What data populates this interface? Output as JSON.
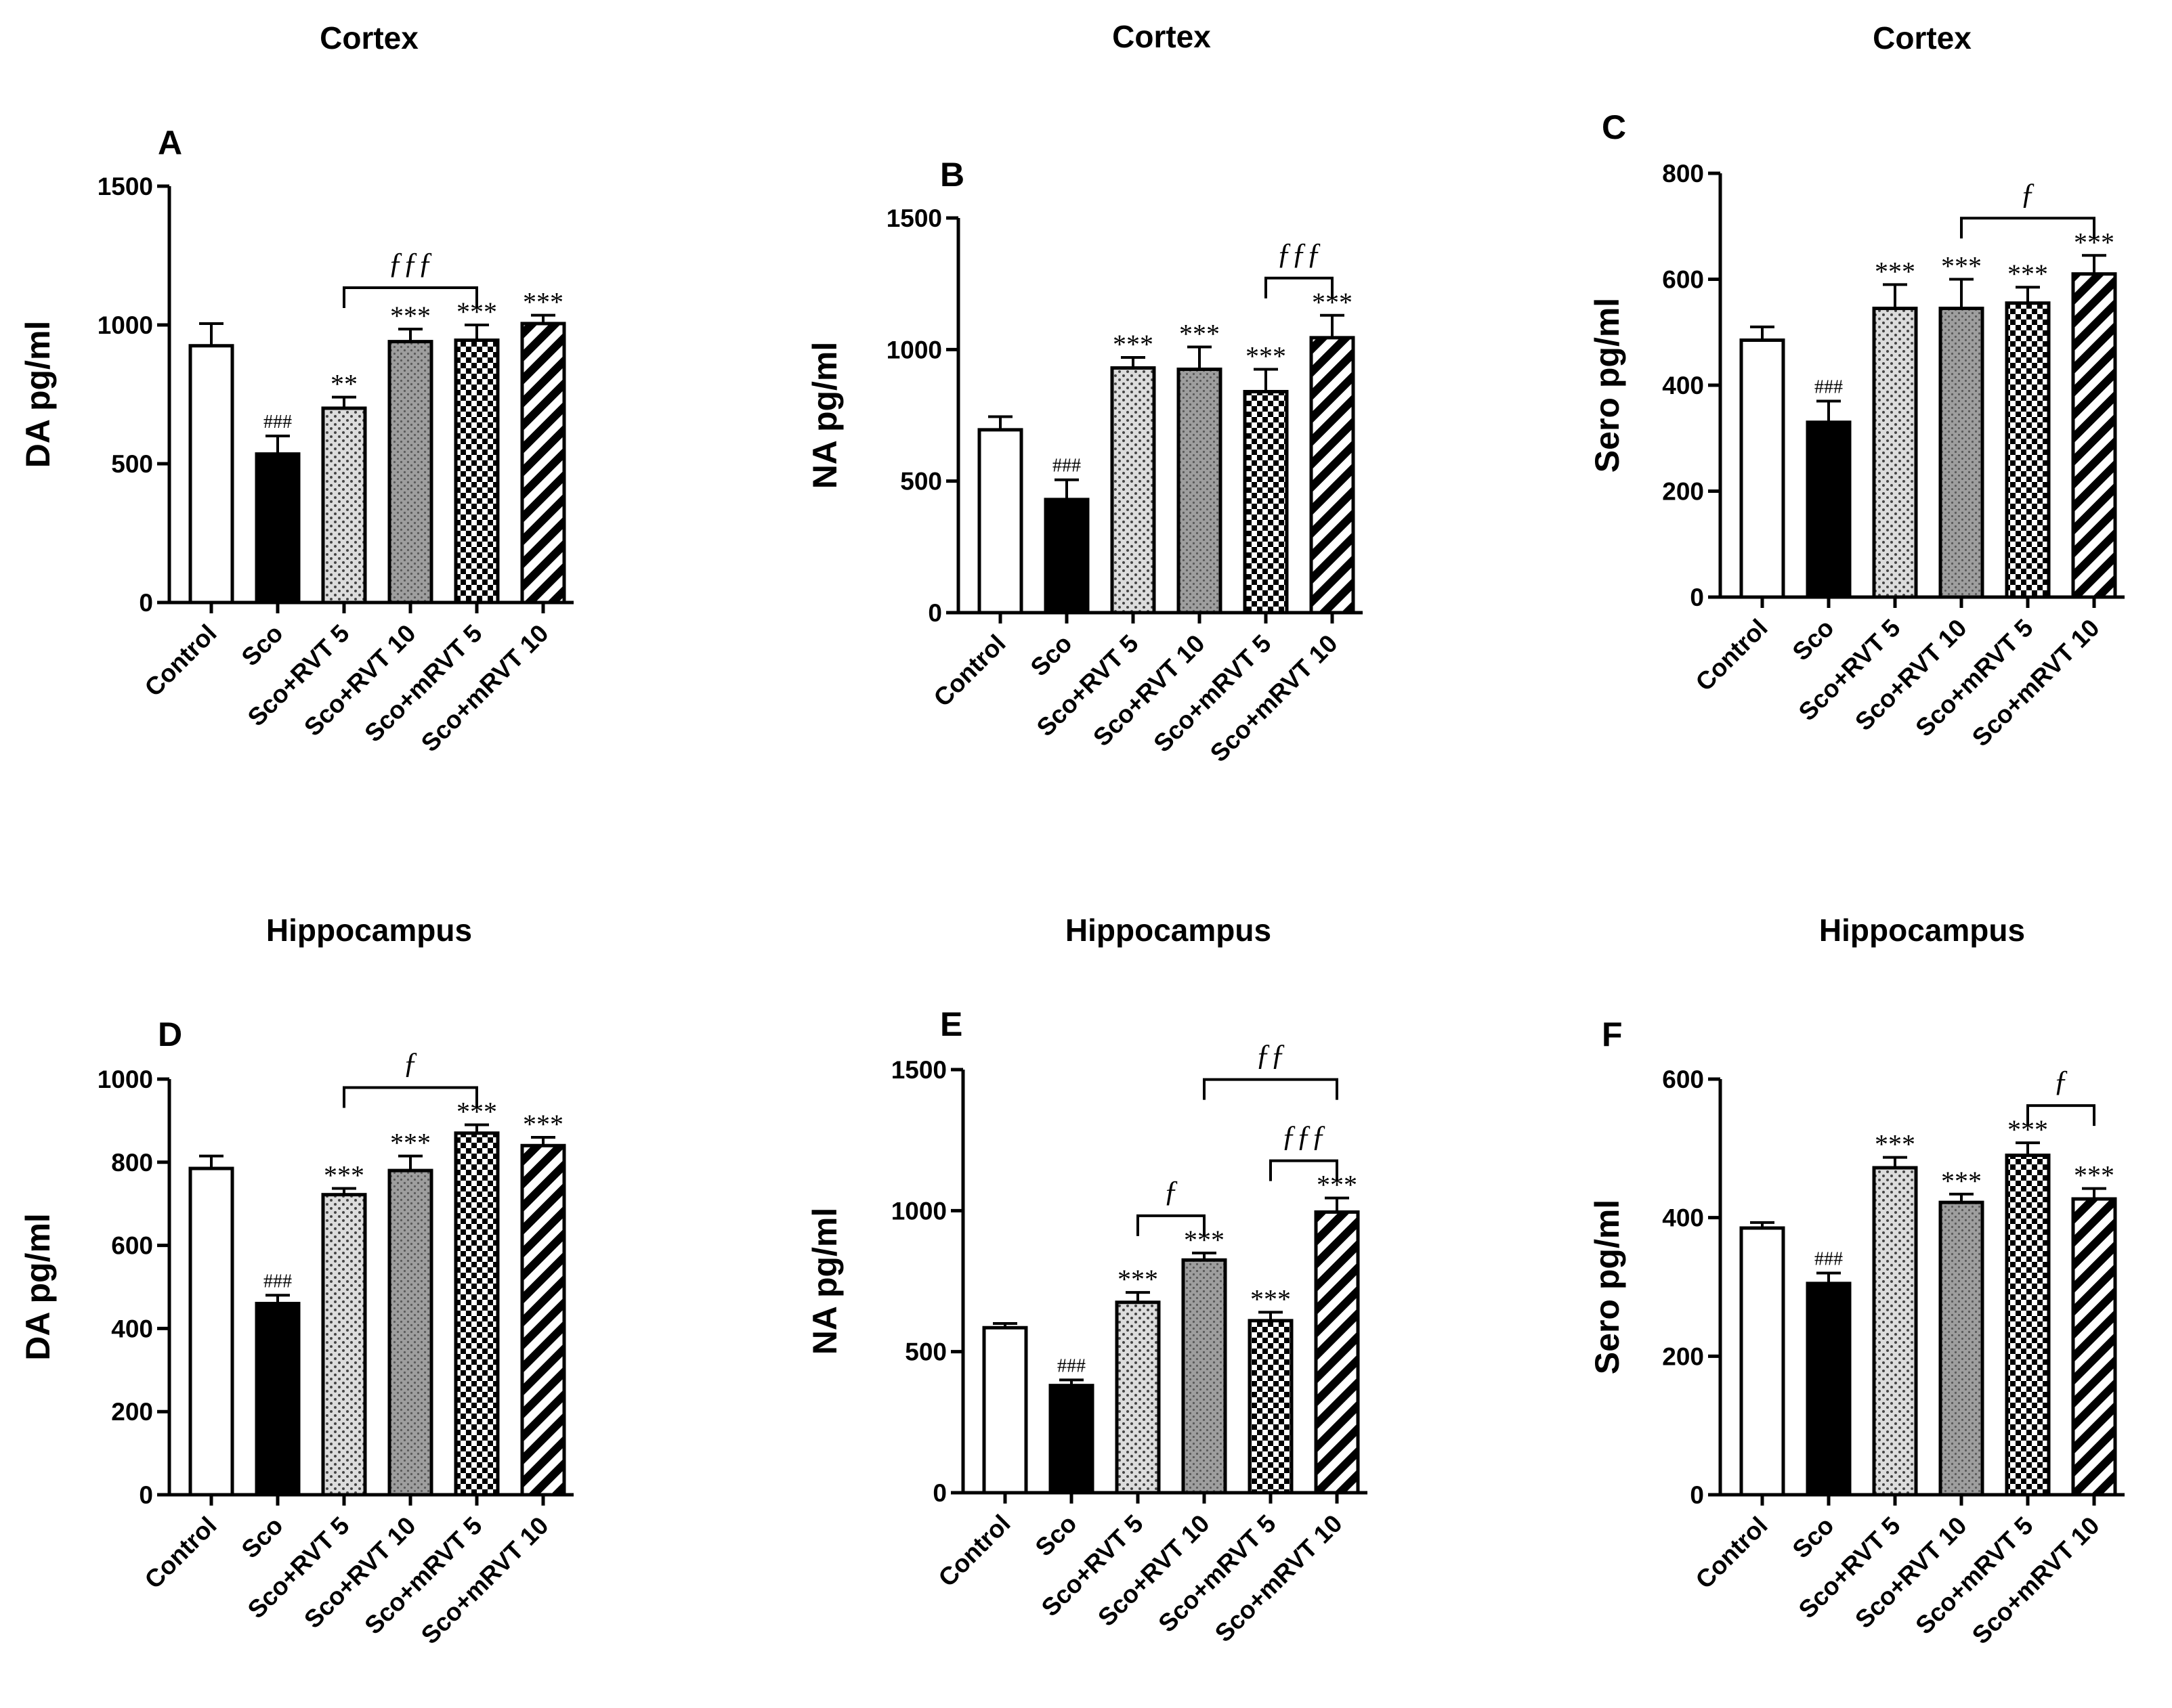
{
  "chart_data": [
    {
      "id": "A",
      "type": "bar",
      "title": "Cortex",
      "panel_label": "A",
      "ylabel": "DA pg/ml",
      "ylim": [
        0,
        1500
      ],
      "yticks": [
        0,
        500,
        1000,
        1500
      ],
      "categories": [
        "Control",
        "Sco",
        "Sco+RVT 5",
        "Sco+RVT 10",
        "Sco+mRVT 5",
        "Sco+mRVT 10"
      ],
      "values": [
        925,
        535,
        700,
        940,
        945,
        1005
      ],
      "errors": [
        80,
        65,
        40,
        45,
        55,
        30
      ],
      "annotations": [
        "",
        "###",
        "**",
        "***",
        "***",
        "***"
      ],
      "brackets": [
        {
          "from": 2,
          "to": 4,
          "label": "ƒƒƒ"
        }
      ]
    },
    {
      "id": "B",
      "type": "bar",
      "title": "Cortex",
      "panel_label": "B",
      "ylabel": "NA pg/ml",
      "ylim": [
        0,
        1500
      ],
      "yticks": [
        0,
        500,
        1000,
        1500
      ],
      "categories": [
        "Control",
        "Sco",
        "Sco+RVT 5",
        "Sco+RVT 10",
        "Sco+mRVT 5",
        "Sco+mRVT 10"
      ],
      "values": [
        695,
        430,
        930,
        925,
        840,
        1045
      ],
      "errors": [
        50,
        75,
        40,
        85,
        85,
        85
      ],
      "annotations": [
        "",
        "###",
        "***",
        "***",
        "***",
        "***"
      ],
      "brackets": [
        {
          "from": 4,
          "to": 5,
          "label": "ƒƒƒ"
        }
      ]
    },
    {
      "id": "C",
      "type": "bar",
      "title": "Cortex",
      "panel_label": "C",
      "ylabel": "Sero pg/ml",
      "ylim": [
        0,
        800
      ],
      "yticks": [
        0,
        200,
        400,
        600,
        800
      ],
      "categories": [
        "Control",
        "Sco",
        "Sco+RVT 5",
        "Sco+RVT 10",
        "Sco+mRVT 5",
        "Sco+mRVT 10"
      ],
      "values": [
        485,
        330,
        545,
        545,
        555,
        610
      ],
      "errors": [
        25,
        40,
        45,
        55,
        30,
        35
      ],
      "annotations": [
        "",
        "###",
        "***",
        "***",
        "***",
        "***"
      ],
      "brackets": [
        {
          "from": 3,
          "to": 5,
          "label": "ƒ"
        }
      ]
    },
    {
      "id": "D",
      "type": "bar",
      "title": "Hippocampus",
      "panel_label": "D",
      "ylabel": "DA pg/ml",
      "ylim": [
        0,
        1000
      ],
      "yticks": [
        0,
        200,
        400,
        600,
        800,
        1000
      ],
      "categories": [
        "Control",
        "Sco",
        "Sco+RVT 5",
        "Sco+RVT 10",
        "Sco+mRVT 5",
        "Sco+mRVT 10"
      ],
      "values": [
        785,
        460,
        722,
        780,
        870,
        840
      ],
      "errors": [
        30,
        20,
        15,
        35,
        20,
        20
      ],
      "annotations": [
        "",
        "###",
        "***",
        "***",
        "***",
        "***"
      ],
      "brackets": [
        {
          "from": 2,
          "to": 4,
          "label": "ƒ"
        }
      ]
    },
    {
      "id": "E",
      "type": "bar",
      "title": "Hippocampus",
      "panel_label": "E",
      "ylabel": "NA pg/ml",
      "ylim": [
        0,
        1500
      ],
      "yticks": [
        0,
        500,
        1000,
        1500
      ],
      "categories": [
        "Control",
        "Sco",
        "Sco+RVT 5",
        "Sco+RVT 10",
        "Sco+mRVT 5",
        "Sco+mRVT 10"
      ],
      "values": [
        585,
        380,
        675,
        825,
        610,
        995
      ],
      "errors": [
        15,
        20,
        35,
        25,
        30,
        50
      ],
      "annotations": [
        "",
        "###",
        "***",
        "***",
        "***",
        "***"
      ],
      "brackets": [
        {
          "from": 2,
          "to": 3,
          "label": "ƒ"
        },
        {
          "from": 4,
          "to": 5,
          "label": "ƒƒƒ"
        },
        {
          "from": 3,
          "to": 5,
          "label": "ƒƒ"
        }
      ]
    },
    {
      "id": "F",
      "type": "bar",
      "title": "Hippocampus",
      "panel_label": "F",
      "ylabel": "Sero pg/ml",
      "ylim": [
        0,
        600
      ],
      "yticks": [
        0,
        200,
        400,
        600
      ],
      "categories": [
        "Control",
        "Sco",
        "Sco+RVT 5",
        "Sco+RVT 10",
        "Sco+mRVT 5",
        "Sco+mRVT 10"
      ],
      "values": [
        385,
        305,
        472,
        422,
        490,
        427
      ],
      "errors": [
        8,
        15,
        15,
        12,
        18,
        15
      ],
      "annotations": [
        "",
        "###",
        "***",
        "***",
        "***",
        "***"
      ],
      "brackets": [
        {
          "from": 4,
          "to": 5,
          "label": "ƒ"
        }
      ]
    }
  ]
}
